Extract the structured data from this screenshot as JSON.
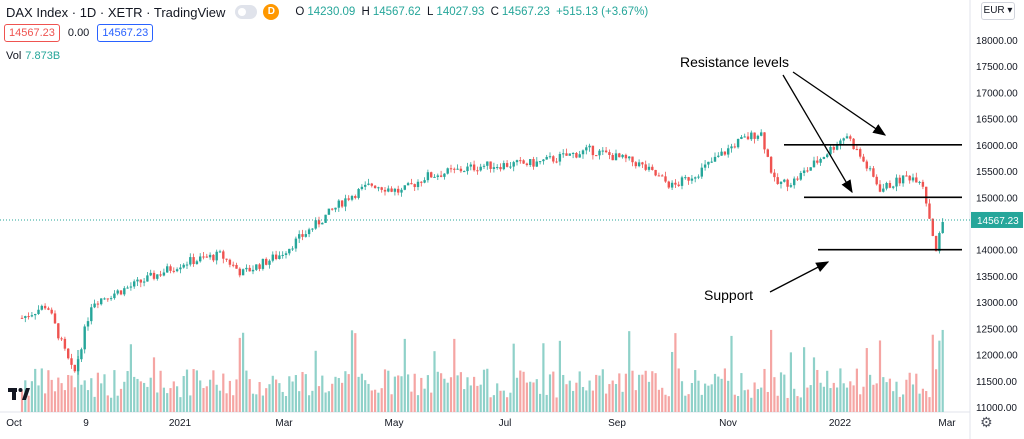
{
  "header": {
    "symbol": "DAX Index · 1D · XETR · TradingView",
    "interval_badge": "D",
    "open_label": "O",
    "open": "14230.09",
    "high_label": "H",
    "high": "14567.62",
    "low_label": "L",
    "low": "14027.93",
    "close_label": "C",
    "close": "14567.23",
    "change": "+515.13 (+3.67%)"
  },
  "toolbar": {
    "sell_price": "14567.23",
    "spread": "0.00",
    "buy_price": "14567.23"
  },
  "volume": {
    "label": "Vol",
    "value": "7.873B"
  },
  "currency": "EUR",
  "colors": {
    "up": "#26a69a",
    "down": "#ef5350",
    "vol_up": "#8fd1c9",
    "vol_down": "#f5a5a3",
    "price_line": "#26a69a",
    "annotation": "#000000"
  },
  "icons": {
    "logo": "tradingview-logo-icon",
    "settings": "gear-icon",
    "dropdown": "chevron-down-icon"
  },
  "chart_data": {
    "type": "candlestick",
    "title": "DAX Index · 1D · XETR · TradingView",
    "y_range": [
      11000,
      18500
    ],
    "y_ticks": [
      "18000.00",
      "17500.00",
      "17000.00",
      "16500.00",
      "16000.00",
      "15500.00",
      "15000.00",
      "14500.00",
      "14000.00",
      "13500.00",
      "13000.00",
      "12500.00",
      "12000.00",
      "11500.00",
      "11000.00"
    ],
    "x_ticks": [
      "Oct",
      "9",
      "2021",
      "Mar",
      "May",
      "Jul",
      "Sep",
      "Nov",
      "2022",
      "Mar"
    ],
    "last_price_label": "14567.23",
    "price_path": [
      [
        "2020-10-01",
        12700
      ],
      [
        "2020-10-15",
        12950
      ],
      [
        "2020-10-30",
        11600
      ],
      [
        "2020-11-09",
        13000
      ],
      [
        "2020-12-01",
        13300
      ],
      [
        "2020-12-30",
        13750
      ],
      [
        "2021-01-20",
        13900
      ],
      [
        "2021-02-01",
        13550
      ],
      [
        "2021-02-22",
        13900
      ],
      [
        "2021-03-15",
        14500
      ],
      [
        "2021-04-01",
        15000
      ],
      [
        "2021-04-15",
        15250
      ],
      [
        "2021-05-01",
        15100
      ],
      [
        "2021-05-15",
        15400
      ],
      [
        "2021-06-15",
        15600
      ],
      [
        "2021-07-15",
        15650
      ],
      [
        "2021-08-15",
        15900
      ],
      [
        "2021-09-10",
        15650
      ],
      [
        "2021-09-30",
        15200
      ],
      [
        "2021-10-15",
        15500
      ],
      [
        "2021-11-05",
        16050
      ],
      [
        "2021-11-18",
        16250
      ],
      [
        "2021-11-26",
        15250
      ],
      [
        "2021-12-06",
        15300
      ],
      [
        "2021-12-20",
        15700
      ],
      [
        "2022-01-05",
        16200
      ],
      [
        "2022-01-24",
        15150
      ],
      [
        "2022-02-08",
        15400
      ],
      [
        "2022-02-16",
        15350
      ],
      [
        "2022-02-24",
        14000
      ],
      [
        "2022-02-28",
        14567.23
      ]
    ],
    "annotations": {
      "resistance_text": "Resistance levels",
      "support_text": "Support",
      "resistance_levels": [
        16000,
        15000
      ],
      "support_level": 14000,
      "line_start_date": "2021-12-01",
      "line_end_date": "2022-03-01"
    }
  }
}
